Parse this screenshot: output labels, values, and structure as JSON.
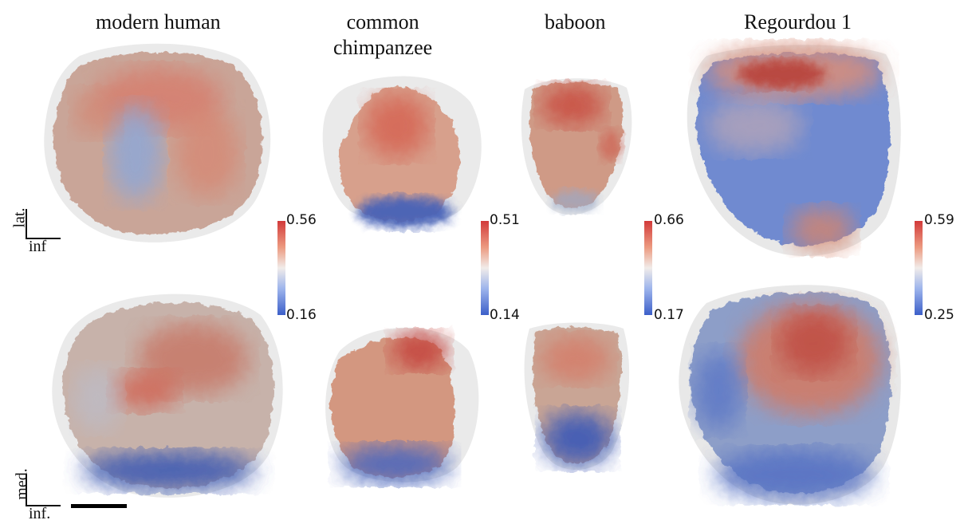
{
  "titles": {
    "modern_human": "modern human",
    "common_chimpanzee_line1": "common",
    "common_chimpanzee_line2": "chimpanzee",
    "baboon": "baboon",
    "regourdou": "Regourdou 1"
  },
  "orientation": {
    "top_vertical": "lat.",
    "top_horizontal": "inf",
    "bottom_vertical": "med.",
    "bottom_horizontal": "inf."
  },
  "colorbars": [
    {
      "max": "0.56",
      "min": "0.16"
    },
    {
      "max": "0.51",
      "min": "0.14"
    },
    {
      "max": "0.66",
      "min": "0.17"
    },
    {
      "max": "0.59",
      "min": "0.25"
    }
  ],
  "colors": {
    "high": "#d23a3a",
    "mid": "#f1ece9",
    "low": "#3c5fc9",
    "translucent_shell": "#dcdcdc"
  }
}
